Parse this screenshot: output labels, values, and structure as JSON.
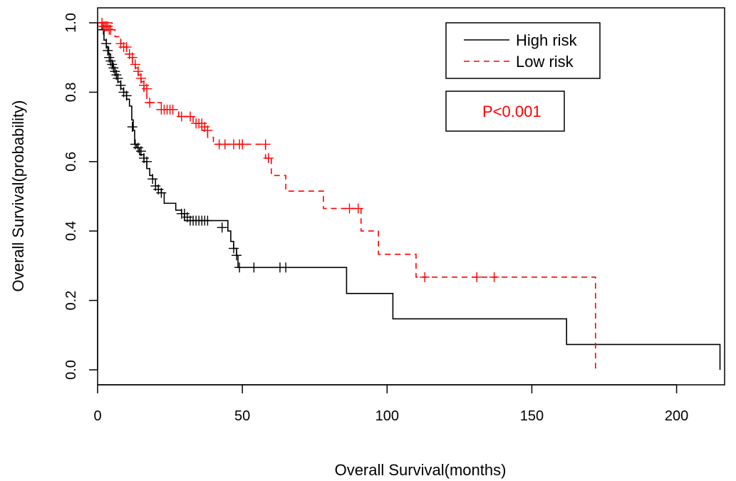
{
  "chart_data": {
    "type": "line",
    "subtype": "kaplan-meier",
    "title": "",
    "xlabel": "Overall Survival(months)",
    "ylabel": "Overall Survival(probability)",
    "xlim": [
      0,
      215
    ],
    "ylim": [
      0,
      1
    ],
    "xticks": [
      0,
      50,
      100,
      150,
      200
    ],
    "yticks": [
      0.0,
      0.2,
      0.4,
      0.6,
      0.8,
      1.0
    ],
    "ytick_labels": [
      "0.0",
      "0.2",
      "0.4",
      "0.6",
      "0.8",
      "1.0"
    ],
    "grid": false,
    "legend": {
      "position": "top-right",
      "entries": [
        {
          "label": "High risk",
          "color": "#000000",
          "dash": "solid"
        },
        {
          "label": "Low risk",
          "color": "#ff0000",
          "dash": "dashed"
        }
      ]
    },
    "annotation": {
      "text": "P<0.001",
      "color": "#ff0000"
    },
    "series": [
      {
        "name": "High risk",
        "color": "#000000",
        "dash": "solid",
        "steps": [
          [
            0,
            1.0
          ],
          [
            1.5,
            0.98
          ],
          [
            2.2,
            0.95
          ],
          [
            3,
            0.93
          ],
          [
            3.8,
            0.91
          ],
          [
            4.5,
            0.89
          ],
          [
            5.2,
            0.87
          ],
          [
            6,
            0.85
          ],
          [
            7,
            0.83
          ],
          [
            8,
            0.81
          ],
          [
            9,
            0.8
          ],
          [
            10,
            0.78
          ],
          [
            11,
            0.76
          ],
          [
            11.8,
            0.72
          ],
          [
            12.3,
            0.69
          ],
          [
            12.8,
            0.65
          ],
          [
            13.5,
            0.64
          ],
          [
            14.5,
            0.62
          ],
          [
            16,
            0.6
          ],
          [
            17,
            0.58
          ],
          [
            18,
            0.56
          ],
          [
            19,
            0.55
          ],
          [
            20,
            0.53
          ],
          [
            21,
            0.52
          ],
          [
            22,
            0.51
          ],
          [
            23,
            0.48
          ],
          [
            27,
            0.46
          ],
          [
            29,
            0.45
          ],
          [
            30,
            0.43
          ],
          [
            45,
            0.4
          ],
          [
            46,
            0.37
          ],
          [
            47,
            0.35
          ],
          [
            48,
            0.33
          ],
          [
            48.5,
            0.295
          ],
          [
            86,
            0.22
          ],
          [
            102,
            0.147
          ],
          [
            162,
            0.073
          ],
          [
            215,
            0.0
          ]
        ],
        "censor": [
          [
            2,
            0.98
          ],
          [
            3,
            0.94
          ],
          [
            3.5,
            0.92
          ],
          [
            4,
            0.9
          ],
          [
            4.5,
            0.89
          ],
          [
            5,
            0.88
          ],
          [
            5.5,
            0.87
          ],
          [
            6,
            0.86
          ],
          [
            6.5,
            0.85
          ],
          [
            7,
            0.84
          ],
          [
            8,
            0.82
          ],
          [
            9,
            0.8
          ],
          [
            10,
            0.79
          ],
          [
            12,
            0.7
          ],
          [
            13,
            0.65
          ],
          [
            14,
            0.64
          ],
          [
            15,
            0.63
          ],
          [
            16,
            0.61
          ],
          [
            17,
            0.6
          ],
          [
            19,
            0.55
          ],
          [
            20,
            0.53
          ],
          [
            21,
            0.52
          ],
          [
            22,
            0.51
          ],
          [
            29,
            0.45
          ],
          [
            30,
            0.45
          ],
          [
            31,
            0.44
          ],
          [
            32,
            0.43
          ],
          [
            33,
            0.43
          ],
          [
            34,
            0.43
          ],
          [
            35,
            0.43
          ],
          [
            36,
            0.43
          ],
          [
            37,
            0.43
          ],
          [
            38,
            0.43
          ],
          [
            43,
            0.41
          ],
          [
            47,
            0.35
          ],
          [
            48,
            0.33
          ],
          [
            49,
            0.295
          ],
          [
            54,
            0.295
          ],
          [
            63,
            0.295
          ],
          [
            65,
            0.295
          ]
        ]
      },
      {
        "name": "Low risk",
        "color": "#ff0000",
        "dash": "dashed",
        "steps": [
          [
            0,
            1.0
          ],
          [
            5,
            0.98
          ],
          [
            6,
            0.96
          ],
          [
            8,
            0.94
          ],
          [
            9,
            0.93
          ],
          [
            10,
            0.91
          ],
          [
            11,
            0.9
          ],
          [
            12,
            0.88
          ],
          [
            13,
            0.87
          ],
          [
            14,
            0.85
          ],
          [
            15,
            0.83
          ],
          [
            16,
            0.8
          ],
          [
            17,
            0.77
          ],
          [
            22,
            0.75
          ],
          [
            28,
            0.73
          ],
          [
            33,
            0.71
          ],
          [
            36,
            0.69
          ],
          [
            38,
            0.67
          ],
          [
            40,
            0.65
          ],
          [
            58,
            0.61
          ],
          [
            60,
            0.56
          ],
          [
            65,
            0.515
          ],
          [
            78,
            0.465
          ],
          [
            91,
            0.4
          ],
          [
            97,
            0.333
          ],
          [
            110,
            0.267
          ],
          [
            172,
            0.0
          ]
        ],
        "censor": [
          [
            1.5,
            1.0
          ],
          [
            2,
            0.99
          ],
          [
            2.5,
            0.99
          ],
          [
            3,
            0.99
          ],
          [
            3.5,
            0.99
          ],
          [
            4,
            0.98
          ],
          [
            4.5,
            0.98
          ],
          [
            8,
            0.94
          ],
          [
            9,
            0.93
          ],
          [
            10,
            0.93
          ],
          [
            11,
            0.91
          ],
          [
            12,
            0.9
          ],
          [
            13,
            0.88
          ],
          [
            14,
            0.86
          ],
          [
            15,
            0.84
          ],
          [
            16,
            0.82
          ],
          [
            17,
            0.81
          ],
          [
            18,
            0.77
          ],
          [
            22,
            0.75
          ],
          [
            23,
            0.75
          ],
          [
            24,
            0.75
          ],
          [
            25,
            0.75
          ],
          [
            26,
            0.75
          ],
          [
            29,
            0.73
          ],
          [
            32,
            0.73
          ],
          [
            34,
            0.71
          ],
          [
            35,
            0.71
          ],
          [
            36,
            0.71
          ],
          [
            37,
            0.7
          ],
          [
            38,
            0.69
          ],
          [
            42,
            0.65
          ],
          [
            44,
            0.65
          ],
          [
            47,
            0.65
          ],
          [
            49,
            0.65
          ],
          [
            50,
            0.65
          ],
          [
            58,
            0.65
          ],
          [
            59,
            0.61
          ],
          [
            87,
            0.465
          ],
          [
            90,
            0.465
          ],
          [
            113,
            0.267
          ],
          [
            131,
            0.267
          ],
          [
            137,
            0.267
          ]
        ]
      }
    ]
  }
}
